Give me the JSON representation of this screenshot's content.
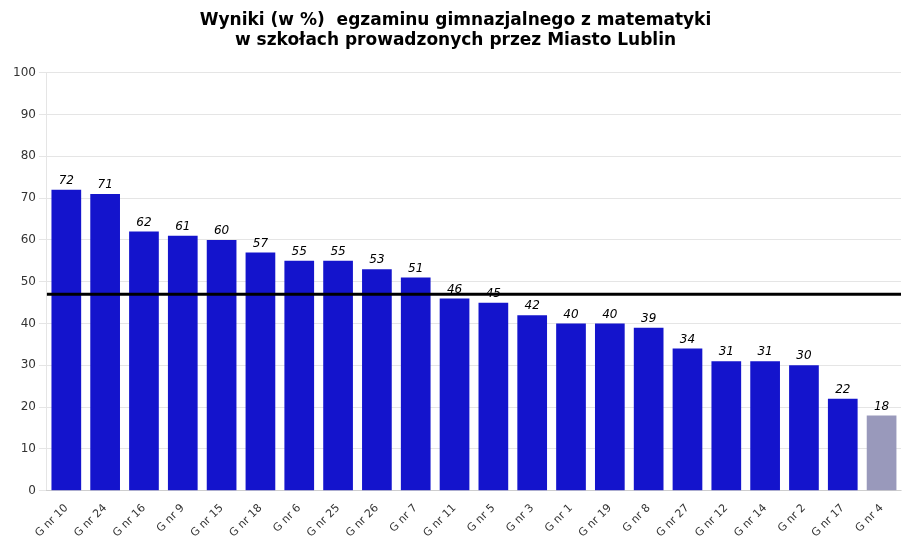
{
  "chart_data": {
    "type": "bar",
    "title": [
      "Wyniki (w %)  egzaminu gimnazjalnego z matematyki",
      "w szkołach prowadzonych przez Miasto Lublin"
    ],
    "categories": [
      "G nr 10",
      "G nr 24",
      "G nr 16",
      "G nr 9",
      "G nr 15",
      "G nr 18",
      "G nr 6",
      "G nr 25",
      "G nr 26",
      "G nr 7",
      "G nr 11",
      "G nr 5",
      "G nr 3",
      "G nr 1",
      "G nr 19",
      "G nr 8",
      "G nr 27",
      "G nr 12",
      "G nr 14",
      "G nr 2",
      "G nr 17",
      "G nr 4"
    ],
    "values": [
      72,
      71,
      62,
      61,
      60,
      57,
      55,
      55,
      53,
      51,
      46,
      45,
      42,
      40,
      40,
      39,
      34,
      31,
      31,
      30,
      22,
      18
    ],
    "colors": [
      "#1414cc",
      "#1414cc",
      "#1414cc",
      "#1414cc",
      "#1414cc",
      "#1414cc",
      "#1414cc",
      "#1414cc",
      "#1414cc",
      "#1414cc",
      "#1414cc",
      "#1414cc",
      "#1414cc",
      "#1414cc",
      "#1414cc",
      "#1414cc",
      "#1414cc",
      "#1414cc",
      "#1414cc",
      "#1414cc",
      "#1414cc",
      "#9999bb"
    ],
    "reference_line": 47,
    "ylim": [
      0,
      100
    ],
    "yticks": [
      0,
      10,
      20,
      30,
      40,
      50,
      60,
      70,
      80,
      90,
      100
    ],
    "grid": true,
    "data_labels": true
  }
}
